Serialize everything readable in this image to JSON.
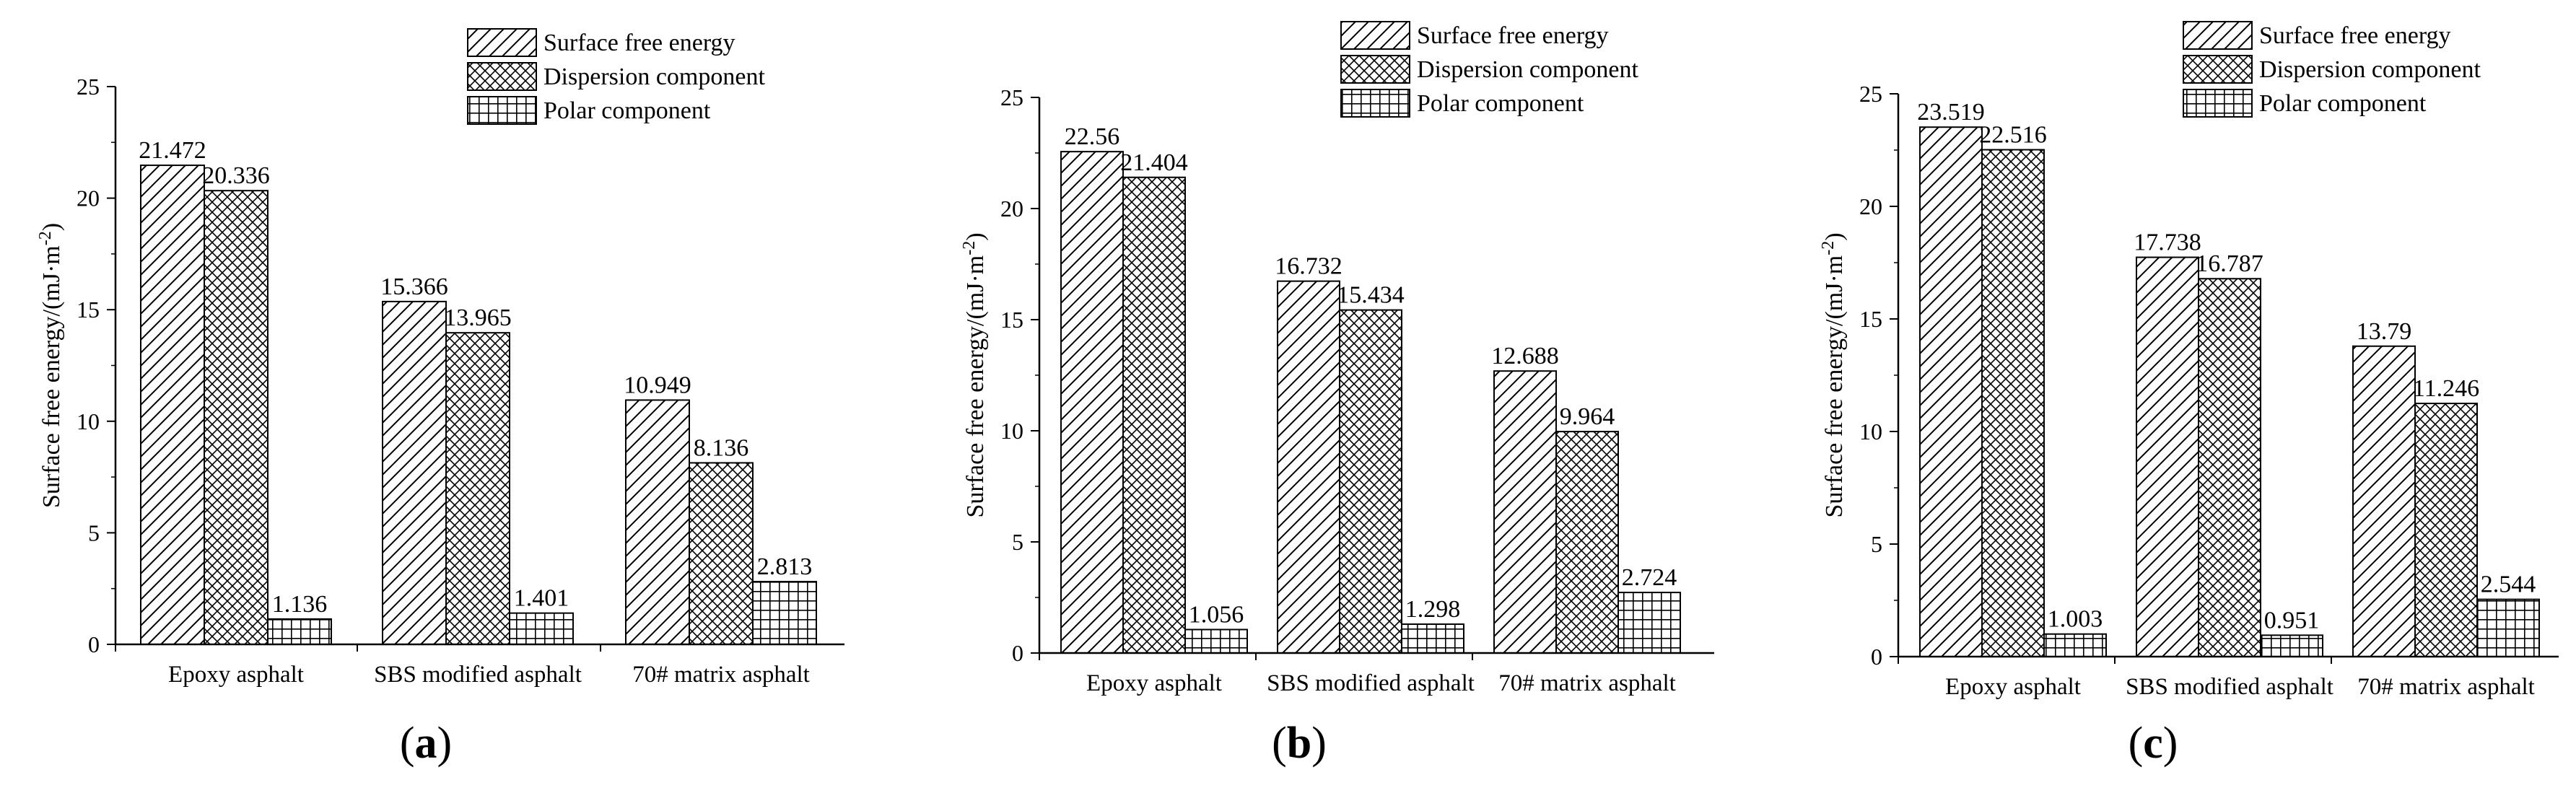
{
  "chart_data": [
    {
      "type": "bar",
      "panel_label": "(a)",
      "categories": [
        "Epoxy asphalt",
        "SBS modified asphalt",
        "70# matrix asphalt"
      ],
      "series": [
        {
          "name": "Surface free energy",
          "values": [
            21.472,
            15.366,
            10.949
          ],
          "value_labels": [
            "21.472",
            "15.366",
            "10.949"
          ]
        },
        {
          "name": "Dispersion component",
          "values": [
            20.336,
            13.965,
            8.136
          ],
          "value_labels": [
            "20.336",
            "13.965",
            "8.136"
          ]
        },
        {
          "name": "Polar component",
          "values": [
            1.136,
            1.401,
            2.813
          ],
          "value_labels": [
            "1.136",
            "1.401",
            "2.813"
          ]
        }
      ],
      "ylabel": "Surface free energy/(mJ·m",
      "ylabel_sup": "-2",
      "ylabel_close": ")",
      "ylim": [
        0,
        25
      ],
      "yticks": [
        0,
        5,
        10,
        15,
        20,
        25
      ],
      "legend_position": "top-right"
    },
    {
      "type": "bar",
      "panel_label": "(b)",
      "categories": [
        "Epoxy asphalt",
        "SBS modified asphalt",
        "70# matrix asphalt"
      ],
      "series": [
        {
          "name": "Surface free energy",
          "values": [
            22.56,
            16.732,
            12.688
          ],
          "value_labels": [
            "22.56",
            "16.732",
            "12.688"
          ]
        },
        {
          "name": "Dispersion component",
          "values": [
            21.404,
            15.434,
            9.964
          ],
          "value_labels": [
            "21.404",
            "15.434",
            "9.964"
          ]
        },
        {
          "name": "Polar component",
          "values": [
            1.056,
            1.298,
            2.724
          ],
          "value_labels": [
            "1.056",
            "1.298",
            "2.724"
          ]
        }
      ],
      "ylabel": "Surface free energy/(mJ·m",
      "ylabel_sup": "-2",
      "ylabel_close": ")",
      "ylim": [
        0,
        25
      ],
      "yticks": [
        0,
        5,
        10,
        15,
        20,
        25
      ],
      "legend_position": "top-right"
    },
    {
      "type": "bar",
      "panel_label": "(c)",
      "categories": [
        "Epoxy asphalt",
        "SBS modified asphalt",
        "70# matrix asphalt"
      ],
      "series": [
        {
          "name": "Surface free energy",
          "values": [
            23.519,
            17.738,
            13.79
          ],
          "value_labels": [
            "23.519",
            "17.738",
            "13.79"
          ]
        },
        {
          "name": "Dispersion component",
          "values": [
            22.516,
            16.787,
            11.246
          ],
          "value_labels": [
            "22.516",
            "16.787",
            "11.246"
          ]
        },
        {
          "name": "Polar component",
          "values": [
            1.003,
            0.951,
            2.544
          ],
          "value_labels": [
            "1.003",
            "0.951",
            "2.544"
          ]
        }
      ],
      "ylabel": "Surface free energy/(mJ·m",
      "ylabel_sup": "-2",
      "ylabel_close": ")",
      "ylim": [
        0,
        25
      ],
      "yticks": [
        0,
        5,
        10,
        15,
        20,
        25
      ],
      "legend_position": "top-right"
    }
  ],
  "colors": {
    "stroke": "#000000",
    "bar_fill": "#ffffff",
    "background": "#ffffff"
  }
}
